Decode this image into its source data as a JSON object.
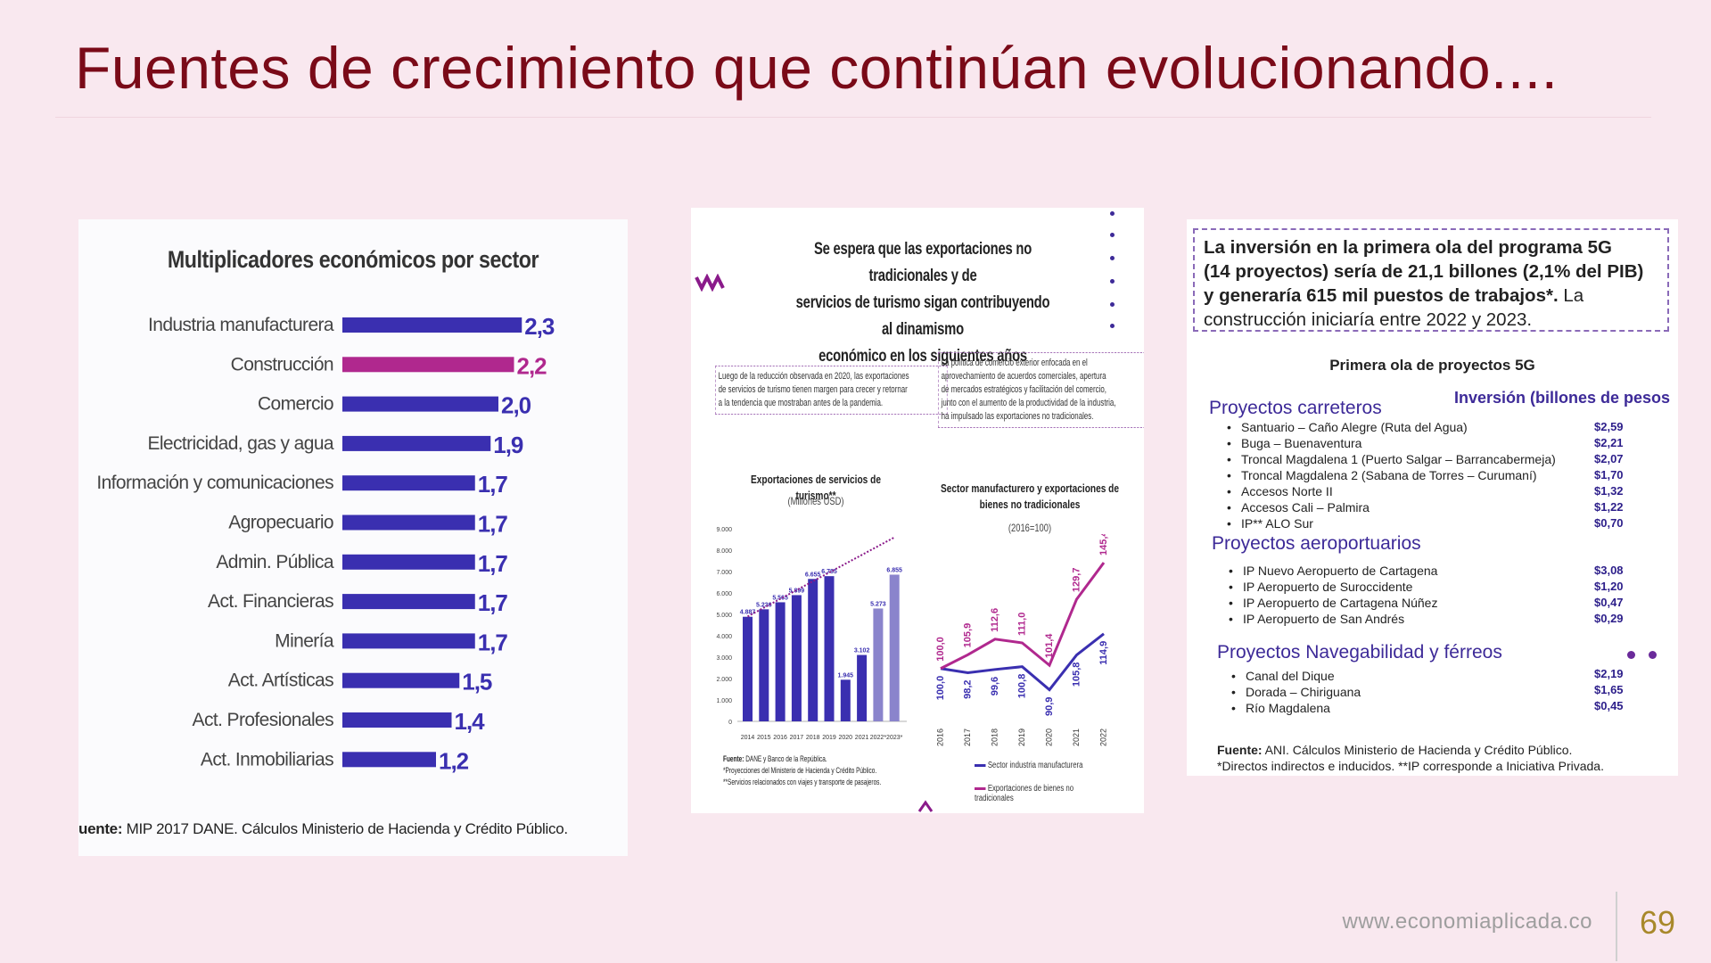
{
  "slide": {
    "title": "Fuentes de crecimiento que continúan evolucionando....",
    "footer_url": "www.economiaplicada.co",
    "page_number": "69"
  },
  "panel1": {
    "title": "Multiplicadores económicos por sector",
    "source_bold": "uente:",
    "source_text": " MIP 2017 DANE. Cálculos Ministerio de Hacienda y Crédito Público.",
    "chart_data": {
      "type": "bar",
      "orientation": "horizontal",
      "categories": [
        "Industria manufacturera",
        "Construcción",
        "Comercio",
        "Electricidad, gas y agua",
        "Información y comunicaciones",
        "Agropecuario",
        "Admin. Pública",
        "Act. Financieras",
        "Minería",
        "Act. Artísticas",
        "Act. Profesionales",
        "Act. Inmobiliarias"
      ],
      "values": [
        2.3,
        2.2,
        2.0,
        1.9,
        1.7,
        1.7,
        1.7,
        1.7,
        1.7,
        1.5,
        1.4,
        1.2
      ],
      "value_labels": [
        "2,3",
        "2,2",
        "2,0",
        "1,9",
        "1,7",
        "1,7",
        "1,7",
        "1,7",
        "1,7",
        "1,5",
        "1,4",
        "1,2"
      ],
      "highlight_index": 1,
      "colors": {
        "bar": "#3a2fb0",
        "highlight": "#b0288e"
      }
    }
  },
  "panel2": {
    "heading": [
      "Se espera que las exportaciones no tradicionales y de",
      "servicios de turismo sigan contribuyendo al dinamismo",
      "económico en los siguientes años"
    ],
    "box_left": [
      "Luego de la reducción observada en 2020, las exportaciones",
      "de servicios de turismo tienen margen para crecer y retornar",
      "a la tendencia que mostraban antes de la pandemia."
    ],
    "box_right": [
      "La política de comercio exterior enfocada en el",
      "aprovechamiento de acuerdos comerciales, apertura",
      "de mercados estratégicos y facilitación del comercio,",
      "junto con el aumento de la productividad de la industria,",
      "ha impulsado las exportaciones no tradicionales."
    ],
    "chart_left": {
      "title": "Exportaciones de servicios de turismo**",
      "subtitle": "(Millones USD)",
      "chart_data": {
        "type": "bar",
        "categories": [
          "2014",
          "2015",
          "2016",
          "2017",
          "2018",
          "2019",
          "2020",
          "2021",
          "2022*",
          "2023*"
        ],
        "values": [
          4887,
          5236,
          5565,
          5899,
          6655,
          6785,
          1945,
          3102,
          5273,
          6855
        ],
        "value_labels": [
          "4.887",
          "5.236",
          "5.565",
          "5.899",
          "6.655",
          "6.785",
          "1.945",
          "3.102",
          "5.273",
          "6.855"
        ],
        "projected_from_index": 8,
        "y_ticks": [
          "0",
          "1.000",
          "2.000",
          "3.000",
          "4.000",
          "5.000",
          "6.000",
          "7.000",
          "8.000",
          "9.000"
        ],
        "ylim": [
          0,
          9000
        ],
        "trend": [
          [
            0,
            4900
          ],
          [
            9,
            8600
          ]
        ],
        "colors": {
          "bar": "#3a2fb0",
          "trend": "#8a1a8a"
        }
      }
    },
    "chart_right": {
      "title": [
        "Sector manufacturero y exportaciones de",
        "bienes no tradicionales"
      ],
      "subtitle": "(2016=100)",
      "chart_data": {
        "type": "line",
        "x": [
          "2016",
          "2017",
          "2018",
          "2019",
          "2020",
          "2021",
          "2022"
        ],
        "series": [
          {
            "name": "Sector industria manufacturera",
            "values": [
              100.0,
              98.2,
              99.6,
              100.8,
              90.9,
              105.8,
              114.9
            ],
            "labels": [
              "100,0",
              "98,2",
              "99,6",
              "100,8",
              "90,9",
              "105,8",
              "114,9"
            ],
            "color": "#3a2fb0"
          },
          {
            "name": "Exportaciones de bienes no tradicionales",
            "values": [
              100.0,
              105.9,
              112.6,
              111.0,
              101.4,
              129.7,
              145.4
            ],
            "labels": [
              "100,0",
              "105,9",
              "112,6",
              "111,0",
              "101,4",
              "129,7",
              "145,4"
            ],
            "color": "#b0288e"
          }
        ]
      }
    },
    "notes_bold": "Fuente:",
    "notes": [
      " DANE y Banco de la República.",
      "*Proyecciones del Ministerio de Hacienda y Crédito Público.",
      "**Servicios relacionados con viajes y transporte de pasajeros."
    ]
  },
  "panel3": {
    "box_bold": [
      "La inversión en la primera ola del programa 5G",
      "(14 proyectos) sería de 21,1 billones (2,1% del PIB)",
      "y generaría 615 mil puestos de trabajos*."
    ],
    "box_tail_inline": " La",
    "box_tail": "construcción iniciaría entre 2022 y 2023.",
    "subtitle": "Primera ola de proyectos 5G",
    "investment_header": "Inversión (billones de pesos",
    "categories": [
      {
        "name": "Proyectos carreteros",
        "items": [
          {
            "name": "Santuario – Caño Alegre (Ruta del Agua)",
            "value": "$2,59"
          },
          {
            "name": "Buga – Buenaventura",
            "value": "$2,21"
          },
          {
            "name": "Troncal Magdalena 1 (Puerto Salgar – Barrancabermeja)",
            "value": "$2,07"
          },
          {
            "name": "Troncal Magdalena 2 (Sabana de Torres – Curumaní)",
            "value": "$1,70"
          },
          {
            "name": "Accesos Norte II",
            "value": "$1,32"
          },
          {
            "name": "Accesos Cali – Palmira",
            "value": "$1,22"
          },
          {
            "name": "IP** ALO Sur",
            "value": "$0,70"
          }
        ]
      },
      {
        "name": "Proyectos aeroportuarios",
        "items": [
          {
            "name": "IP Nuevo Aeropuerto de Cartagena",
            "value": "$3,08"
          },
          {
            "name": "IP Aeropuerto de Suroccidente",
            "value": "$1,20"
          },
          {
            "name": "IP Aeropuerto de Cartagena Núñez",
            "value": "$0,47"
          },
          {
            "name": "IP Aeropuerto de San Andrés",
            "value": "$0,29"
          }
        ]
      },
      {
        "name": "Proyectos Navegabilidad y férreos",
        "items": [
          {
            "name": "Canal del Dique",
            "value": "$2,19"
          },
          {
            "name": "Dorada – Chiriguana",
            "value": "$1,65"
          },
          {
            "name": "Río Magdalena",
            "value": "$0,45"
          }
        ]
      }
    ],
    "source_bold": "Fuente:",
    "source_line1": " ANI. Cálculos Ministerio de Hacienda y Crédito Público.",
    "source_line2": "*Directos indirectos e inducidos. **IP corresponde a Iniciativa Privada."
  },
  "colors": {
    "title": "#7a0a18",
    "background": "#f9e8ef",
    "accent": "#3d2a98",
    "magenta": "#b0288e"
  }
}
